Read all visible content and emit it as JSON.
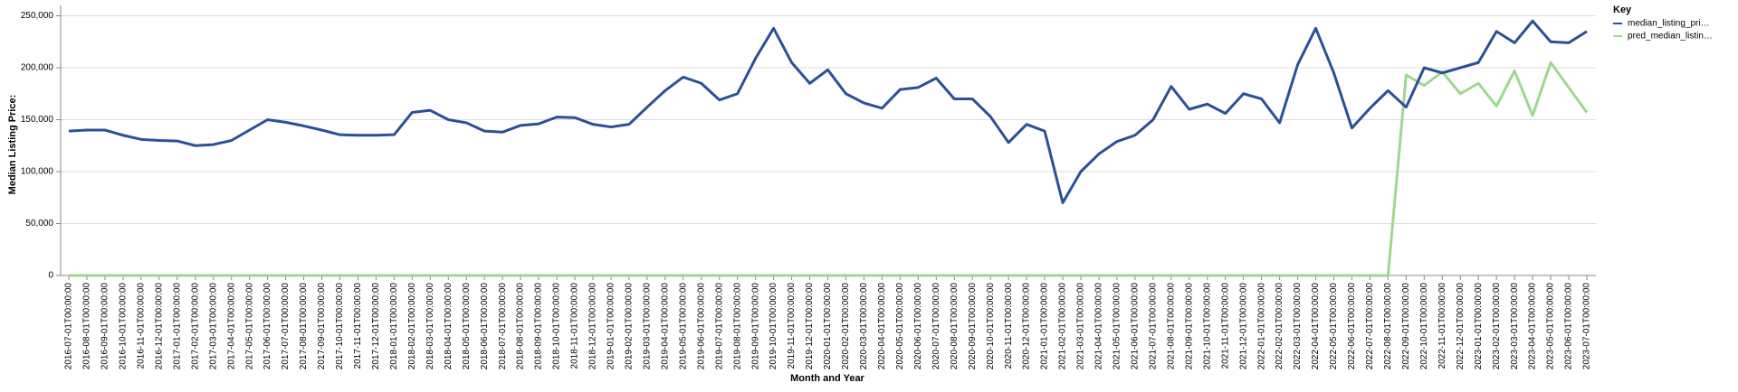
{
  "chart_data": {
    "type": "line",
    "x_label": "Month and Year",
    "y_label": "Median Listing Price:",
    "legend_title": "Key",
    "legend_position": "right",
    "grid": true,
    "categories": [
      "2016-07-01T00:00:00",
      "2016-08-01T00:00:00",
      "2016-09-01T00:00:00",
      "2016-10-01T00:00:00",
      "2016-11-01T00:00:00",
      "2016-12-01T00:00:00",
      "2017-01-01T00:00:00",
      "2017-02-01T00:00:00",
      "2017-03-01T00:00:00",
      "2017-04-01T00:00:00",
      "2017-05-01T00:00:00",
      "2017-06-01T00:00:00",
      "2017-07-01T00:00:00",
      "2017-08-01T00:00:00",
      "2017-09-01T00:00:00",
      "2017-10-01T00:00:00",
      "2017-11-01T00:00:00",
      "2017-12-01T00:00:00",
      "2018-01-01T00:00:00",
      "2018-02-01T00:00:00",
      "2018-03-01T00:00:00",
      "2018-04-01T00:00:00",
      "2018-05-01T00:00:00",
      "2018-06-01T00:00:00",
      "2018-07-01T00:00:00",
      "2018-08-01T00:00:00",
      "2018-09-01T00:00:00",
      "2018-10-01T00:00:00",
      "2018-11-01T00:00:00",
      "2018-12-01T00:00:00",
      "2019-01-01T00:00:00",
      "2019-02-01T00:00:00",
      "2019-03-01T00:00:00",
      "2019-04-01T00:00:00",
      "2019-05-01T00:00:00",
      "2019-06-01T00:00:00",
      "2019-07-01T00:00:00",
      "2019-08-01T00:00:00",
      "2019-09-01T00:00:00",
      "2019-10-01T00:00:00",
      "2019-11-01T00:00:00",
      "2019-12-01T00:00:00",
      "2020-01-01T00:00:00",
      "2020-02-01T00:00:00",
      "2020-03-01T00:00:00",
      "2020-04-01T00:00:00",
      "2020-05-01T00:00:00",
      "2020-06-01T00:00:00",
      "2020-07-01T00:00:00",
      "2020-08-01T00:00:00",
      "2020-09-01T00:00:00",
      "2020-10-01T00:00:00",
      "2020-11-01T00:00:00",
      "2020-12-01T00:00:00",
      "2021-01-01T00:00:00",
      "2021-02-01T00:00:00",
      "2021-03-01T00:00:00",
      "2021-04-01T00:00:00",
      "2021-05-01T00:00:00",
      "2021-06-01T00:00:00",
      "2021-07-01T00:00:00",
      "2021-08-01T00:00:00",
      "2021-09-01T00:00:00",
      "2021-10-01T00:00:00",
      "2021-11-01T00:00:00",
      "2021-12-01T00:00:00",
      "2022-01-01T00:00:00",
      "2022-02-01T00:00:00",
      "2022-03-01T00:00:00",
      "2022-04-01T00:00:00",
      "2022-05-01T00:00:00",
      "2022-06-01T00:00:00",
      "2022-07-01T00:00:00",
      "2022-08-01T00:00:00",
      "2022-09-01T00:00:00",
      "2022-10-01T00:00:00",
      "2022-11-01T00:00:00",
      "2022-12-01T00:00:00",
      "2023-01-01T00:00:00",
      "2023-02-01T00:00:00",
      "2023-03-01T00:00:00",
      "2023-04-01T00:00:00",
      "2023-05-01T00:00:00",
      "2023-06-01T00:00:00",
      "2023-07-01T00:00:00"
    ],
    "series": [
      {
        "name": "median_listing_pri…",
        "color": "#2a5097",
        "values": [
          139000,
          140000,
          140000,
          135000,
          131000,
          130000,
          129500,
          125000,
          126000,
          130000,
          140000,
          150000,
          147500,
          144000,
          140000,
          135500,
          135000,
          135000,
          135500,
          157000,
          159000,
          150000,
          147000,
          139000,
          138000,
          144500,
          146000,
          152500,
          152000,
          145500,
          143000,
          145500,
          162000,
          178000,
          191000,
          185000,
          169000,
          175000,
          209000,
          238000,
          205000,
          185000,
          198000,
          175000,
          166000,
          161000,
          179000,
          181000,
          190000,
          170000,
          170000,
          153000,
          128000,
          145500,
          139000,
          70000,
          100000,
          117000,
          129000,
          135000,
          150000,
          182000,
          160000,
          165000,
          156000,
          175000,
          170000,
          147000,
          203000,
          238000,
          195000,
          142000,
          161000,
          178000,
          162000,
          200000,
          195000,
          200000,
          205000,
          235000,
          224000,
          245000,
          225000,
          224000,
          235000
        ]
      },
      {
        "name": "pred_median_listin…",
        "color": "#9ed88f",
        "values": [
          0,
          0,
          0,
          0,
          0,
          0,
          0,
          0,
          0,
          0,
          0,
          0,
          0,
          0,
          0,
          0,
          0,
          0,
          0,
          0,
          0,
          0,
          0,
          0,
          0,
          0,
          0,
          0,
          0,
          0,
          0,
          0,
          0,
          0,
          0,
          0,
          0,
          0,
          0,
          0,
          0,
          0,
          0,
          0,
          0,
          0,
          0,
          0,
          0,
          0,
          0,
          0,
          0,
          0,
          0,
          0,
          0,
          0,
          0,
          0,
          0,
          0,
          0,
          0,
          0,
          0,
          0,
          0,
          0,
          0,
          0,
          0,
          0,
          0,
          193000,
          183000,
          196000,
          175000,
          185000,
          163000,
          197000,
          154000,
          205000,
          181000,
          157000
        ]
      }
    ],
    "ylim": [
      0,
      260000
    ],
    "yticks": [
      0,
      {
        "value": 50000,
        "label": "50,000"
      },
      {
        "value": 100000,
        "label": "100,000"
      },
      {
        "value": 150000,
        "label": "150,000"
      },
      {
        "value": 200000,
        "label": "200,000"
      },
      {
        "value": 250000,
        "label": "250,000"
      }
    ]
  }
}
